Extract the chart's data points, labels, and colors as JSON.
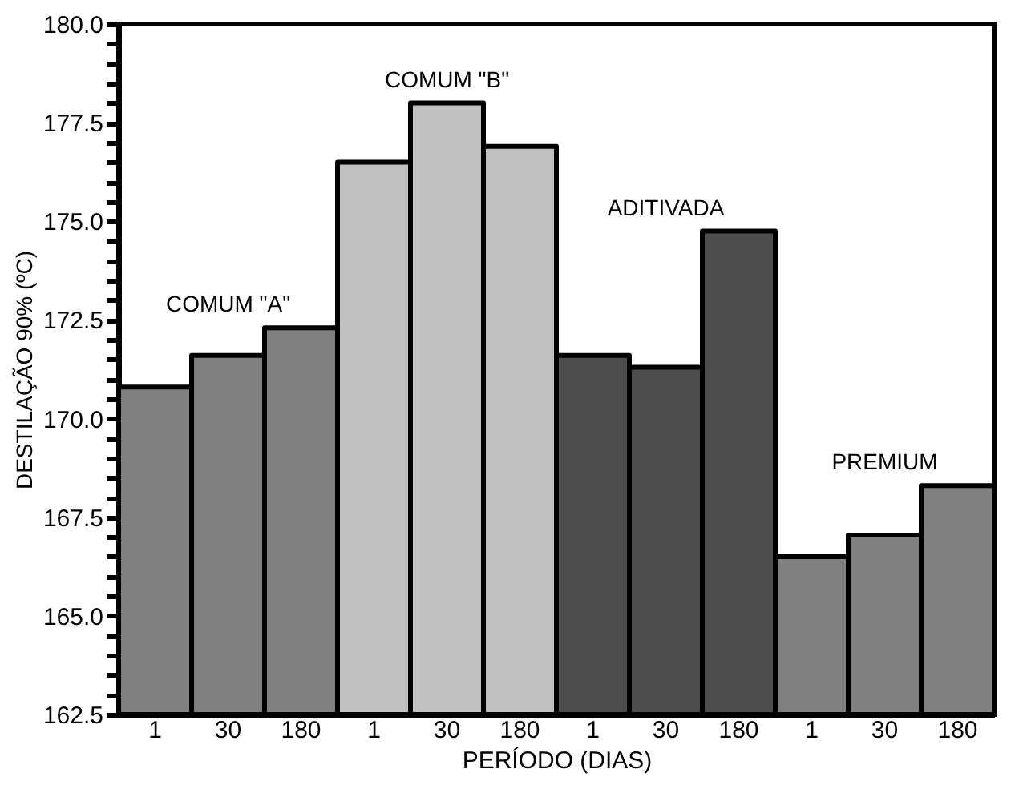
{
  "chart_data": {
    "type": "bar",
    "xlabel": "PERÍODO (DIAS)",
    "ylabel": "DESTILAÇÃO 90% (ºC)",
    "categories": [
      "1",
      "30",
      "180",
      "1",
      "30",
      "180",
      "1",
      "30",
      "180",
      "1",
      "30",
      "180"
    ],
    "series": [
      {
        "name": "COMUM \"A\"",
        "color": "#808080",
        "values": [
          170.8,
          171.6,
          172.3,
          null,
          null,
          null,
          null,
          null,
          null,
          null,
          null,
          null
        ]
      },
      {
        "name": "COMUM \"B\"",
        "color": "#c0c0c0",
        "values": [
          null,
          null,
          null,
          176.5,
          178.0,
          176.9,
          null,
          null,
          null,
          null,
          null,
          null
        ]
      },
      {
        "name": "ADITIVADA",
        "color": "#4d4d4d",
        "values": [
          null,
          null,
          null,
          null,
          null,
          null,
          171.6,
          171.3,
          174.75,
          null,
          null,
          null
        ]
      },
      {
        "name": "PREMIUM",
        "color": "#808080",
        "values": [
          null,
          null,
          null,
          null,
          null,
          null,
          null,
          null,
          null,
          166.5,
          167.05,
          168.3
        ]
      }
    ],
    "ylim": [
      162.5,
      180.0
    ],
    "yticks": [
      162.5,
      {
        "value": 163,
        "label": null
      },
      {
        "value": 163.5,
        "label": null
      },
      {
        "value": 164,
        "label": null
      },
      {
        "value": 164.5,
        "label": null
      },
      {
        "value": 165,
        "label": "165.0"
      },
      {
        "value": 165.5,
        "label": null
      },
      {
        "value": 166,
        "label": null
      },
      {
        "value": 166.5,
        "label": null
      },
      {
        "value": 167,
        "label": null
      },
      167.5,
      {
        "value": 168,
        "label": null
      },
      {
        "value": 168.5,
        "label": null
      },
      {
        "value": 169,
        "label": null
      },
      {
        "value": 169.5,
        "label": null
      },
      {
        "value": 170,
        "label": "170.0"
      },
      {
        "value": 170.5,
        "label": null
      },
      {
        "value": 171,
        "label": null
      },
      {
        "value": 171.5,
        "label": null
      },
      {
        "value": 172,
        "label": null
      },
      172.5,
      {
        "value": 173,
        "label": null
      },
      {
        "value": 173.5,
        "label": null
      },
      {
        "value": 174,
        "label": null
      },
      {
        "value": 174.5,
        "label": null
      },
      {
        "value": 175,
        "label": "175.0"
      },
      {
        "value": 175.5,
        "label": null
      },
      {
        "value": 176,
        "label": null
      },
      {
        "value": 176.5,
        "label": null
      },
      {
        "value": 177,
        "label": null
      },
      177.5,
      {
        "value": 178,
        "label": null
      },
      {
        "value": 178.5,
        "label": null
      },
      {
        "value": 179,
        "label": null
      },
      {
        "value": 179.5,
        "label": null
      },
      {
        "value": 180,
        "label": "180.0"
      }
    ],
    "grid": false,
    "legend": false
  }
}
